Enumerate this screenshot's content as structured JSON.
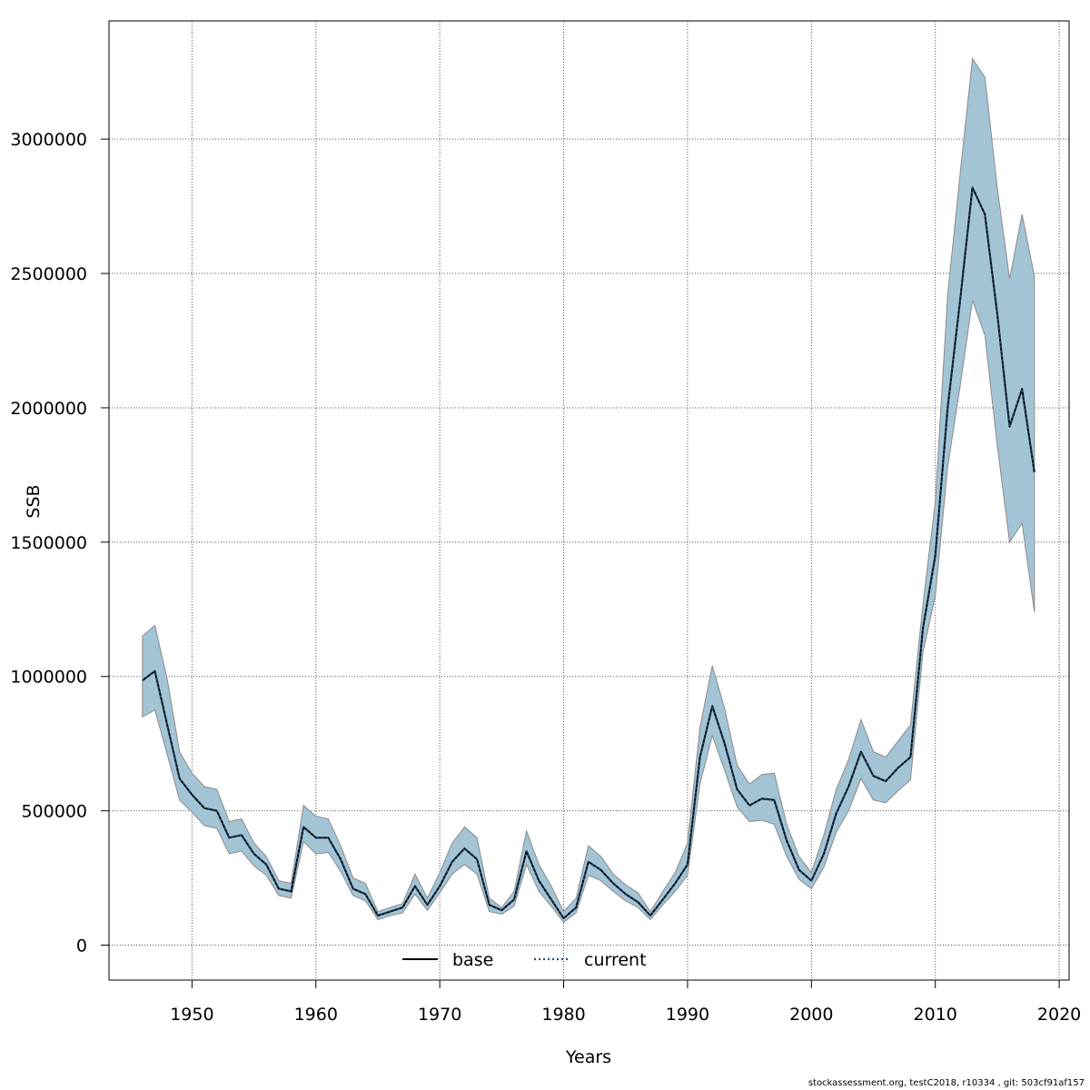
{
  "chart_data": {
    "type": "area",
    "xlabel": "Years",
    "ylabel": "SSB",
    "xlim": [
      1943.3,
      2020.8
    ],
    "ylim": [
      -130000,
      3440000
    ],
    "x_ticks": [
      1950,
      1960,
      1970,
      1980,
      1990,
      2000,
      2010,
      2020
    ],
    "y_ticks": [
      0,
      500000,
      1000000,
      1500000,
      2000000,
      2500000,
      3000000
    ],
    "x_tick_labels": [
      "1950",
      "1960",
      "1970",
      "1980",
      "1990",
      "2000",
      "2010",
      "2020"
    ],
    "y_tick_labels": [
      "0",
      "500000",
      "1000000",
      "1500000",
      "2000000",
      "2500000",
      "3000000"
    ],
    "grid": true,
    "legend_position": "bottom-center",
    "band_color": "#a3c4d5",
    "band_edge_color": "#8a8a8a",
    "x": [
      1946,
      1947,
      1948,
      1949,
      1950,
      1951,
      1952,
      1953,
      1954,
      1955,
      1956,
      1957,
      1958,
      1959,
      1960,
      1961,
      1962,
      1963,
      1964,
      1965,
      1966,
      1967,
      1968,
      1969,
      1970,
      1971,
      1972,
      1973,
      1974,
      1975,
      1976,
      1977,
      1978,
      1979,
      1980,
      1981,
      1982,
      1983,
      1984,
      1985,
      1986,
      1987,
      1988,
      1989,
      1990,
      1991,
      1992,
      1993,
      1994,
      1995,
      1996,
      1997,
      1998,
      1999,
      2000,
      2001,
      2002,
      2003,
      2004,
      2005,
      2006,
      2007,
      2008,
      2009,
      2010,
      2011,
      2012,
      2013,
      2014,
      2015,
      2016,
      2017,
      2018
    ],
    "series": [
      {
        "name": "base",
        "line_style": "solid",
        "color": "#000000",
        "values": [
          985000,
          1020000,
          820000,
          620000,
          560000,
          510000,
          500000,
          400000,
          410000,
          340000,
          300000,
          210000,
          200000,
          440000,
          400000,
          400000,
          320000,
          210000,
          190000,
          110000,
          125000,
          140000,
          220000,
          150000,
          220000,
          310000,
          360000,
          320000,
          150000,
          130000,
          170000,
          350000,
          240000,
          170000,
          100000,
          140000,
          310000,
          280000,
          230000,
          190000,
          160000,
          110000,
          170000,
          230000,
          300000,
          700000,
          890000,
          750000,
          580000,
          520000,
          545000,
          540000,
          390000,
          280000,
          240000,
          340000,
          490000,
          590000,
          720000,
          630000,
          610000,
          660000,
          700000,
          1180000,
          1450000,
          2000000,
          2400000,
          2820000,
          2720000,
          2350000,
          1930000,
          2070000,
          1760000
        ]
      },
      {
        "name": "current",
        "line_style": "dotted",
        "color": "#1f4e79",
        "values": [
          985000,
          1020000,
          820000,
          620000,
          560000,
          510000,
          500000,
          400000,
          410000,
          340000,
          300000,
          210000,
          200000,
          440000,
          400000,
          400000,
          320000,
          210000,
          190000,
          110000,
          125000,
          140000,
          220000,
          150000,
          220000,
          310000,
          360000,
          320000,
          150000,
          130000,
          170000,
          350000,
          240000,
          170000,
          100000,
          140000,
          310000,
          280000,
          230000,
          190000,
          160000,
          110000,
          170000,
          230000,
          300000,
          700000,
          890000,
          750000,
          580000,
          520000,
          545000,
          540000,
          390000,
          280000,
          240000,
          340000,
          490000,
          590000,
          720000,
          630000,
          610000,
          660000,
          700000,
          1180000,
          1450000,
          2000000,
          2400000,
          2820000,
          2720000,
          2350000,
          1930000,
          2070000,
          1760000
        ]
      }
    ],
    "band_upper": [
      1150000,
      1190000,
      990000,
      720000,
      640000,
      590000,
      580000,
      460000,
      470000,
      380000,
      330000,
      240000,
      230000,
      520000,
      480000,
      470000,
      370000,
      250000,
      230000,
      125000,
      140000,
      155000,
      265000,
      175000,
      270000,
      380000,
      440000,
      400000,
      175000,
      140000,
      200000,
      425000,
      300000,
      220000,
      125000,
      175000,
      370000,
      330000,
      265000,
      225000,
      195000,
      125000,
      200000,
      270000,
      380000,
      810000,
      1040000,
      880000,
      670000,
      600000,
      635000,
      640000,
      450000,
      330000,
      270000,
      410000,
      580000,
      690000,
      840000,
      720000,
      700000,
      760000,
      820000,
      1270000,
      1650000,
      2420000,
      2870000,
      3300000,
      3230000,
      2820000,
      2480000,
      2720000,
      2490000
    ],
    "band_lower": [
      850000,
      875000,
      710000,
      540000,
      495000,
      445000,
      435000,
      340000,
      350000,
      295000,
      260000,
      185000,
      175000,
      385000,
      340000,
      345000,
      275000,
      185000,
      165000,
      95000,
      110000,
      120000,
      190000,
      130000,
      195000,
      265000,
      300000,
      265000,
      125000,
      115000,
      145000,
      300000,
      200000,
      145000,
      85000,
      120000,
      260000,
      240000,
      200000,
      165000,
      140000,
      95000,
      150000,
      200000,
      260000,
      600000,
      780000,
      650000,
      515000,
      460000,
      465000,
      450000,
      330000,
      245000,
      210000,
      290000,
      420000,
      500000,
      620000,
      540000,
      530000,
      575000,
      615000,
      1090000,
      1300000,
      1780000,
      2080000,
      2400000,
      2270000,
      1860000,
      1500000,
      1570000,
      1240000
    ]
  },
  "footer": "stockassessment.org, testC2018, r10334 , git: 503cf91af157"
}
